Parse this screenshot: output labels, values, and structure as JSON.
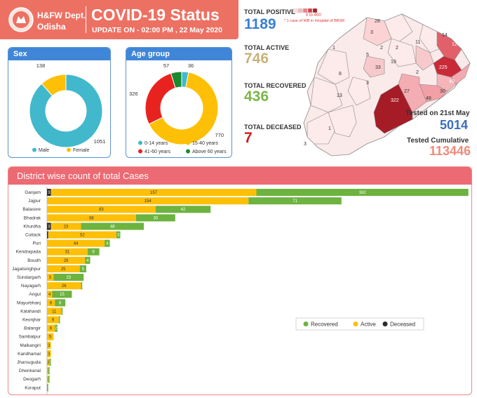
{
  "header": {
    "dept_line1": "H&FW Dept.",
    "dept_line2": "Odisha",
    "title": "COVID-19 Status",
    "update": "UPDATE ON - 02:00 PM , 22 May 2020"
  },
  "colors": {
    "header_bg": "#ec7163",
    "card_head_bg": "#3f86d8",
    "male": "#42b8cc",
    "female": "#fec006",
    "age_0_14": "#42b8cc",
    "age_15_40": "#fec006",
    "age_41_60": "#e8231f",
    "age_60_plus": "#1a8a2e",
    "positive": "#3b7fd1",
    "active": "#c9b27a",
    "recovered": "#7ab648",
    "deceased": "#d21a1a",
    "tested_day": "#3b6fbf",
    "tested_cum": "#f08a7a",
    "bar_recovered": "#6db33f",
    "bar_active": "#fec006",
    "bar_deceased": "#2b2b2b"
  },
  "stats": {
    "total_positive_label": "TOTAL POSITIVE",
    "total_positive": "1189",
    "total_active_label": "TOTAL ACTIVE",
    "total_active": "746",
    "total_recovered_label": "TOTAL RECOVERED",
    "total_recovered": "436",
    "total_deceased_label": "TOTAL DECEASED",
    "total_deceased": "7"
  },
  "tested": {
    "day_label": "Tested on 21st May",
    "day_value": "5014",
    "cum_label": "Tested Cumulative",
    "cum_value": "113446"
  },
  "map": {
    "legend_range": "0 to 400",
    "note": "* 1 case of WB in Hospital of BBSR",
    "labels": [
      "28",
      "14",
      "125",
      "225",
      "30",
      "40",
      "48",
      "27",
      "33",
      "19",
      "11",
      "2",
      "5",
      "2",
      "3",
      "8",
      "3",
      "2",
      "13",
      "322",
      "1",
      "3",
      "1"
    ]
  },
  "chart_data": [
    {
      "type": "pie",
      "title": "Sex",
      "categories": [
        "Male",
        "Female"
      ],
      "values": [
        1051,
        138
      ],
      "legend_placement": "bottom"
    },
    {
      "type": "pie",
      "title": "Age group",
      "categories": [
        "0-14 years",
        "15-40 years",
        "41-60 years",
        "Above 60 years"
      ],
      "values": [
        36,
        770,
        326,
        57
      ],
      "legend_placement": "bottom"
    },
    {
      "type": "bar",
      "orientation": "horizontal",
      "stacked": true,
      "title": "District wise count of total Cases",
      "categories": [
        "Ganjam",
        "Jajpur",
        "Balasore",
        "Bhadrak",
        "Khurdha",
        "Cuttack",
        "Puri",
        "Kendrapada",
        "Boudh",
        "Jagatsinghpur",
        "Sundargarh",
        "Nayagarh",
        "Angul",
        "Mayurbhanj",
        "Kalahandi",
        "Keonjhar",
        "Balangir",
        "Sambalpur",
        "Malkangiri",
        "Kandhamal",
        "Jharsuguda",
        "Dhenkanal",
        "Deogarh",
        "Koraput"
      ],
      "series": [
        {
          "name": "Deceased",
          "values": [
            3,
            0,
            0,
            0,
            3,
            1,
            0,
            0,
            0,
            0,
            0,
            0,
            0,
            0,
            0,
            0,
            0,
            0,
            0,
            0,
            0,
            0,
            0,
            0
          ]
        },
        {
          "name": "Active",
          "values": [
            157,
            154,
            83,
            68,
            23,
            52,
            44,
            31,
            29,
            25,
            5,
            26,
            4,
            6,
            11,
            9,
            6,
            5,
            3,
            3,
            2,
            1,
            1,
            0
          ]
        },
        {
          "name": "Recovered",
          "values": [
            162,
            71,
            42,
            30,
            48,
            3,
            4,
            9,
            4,
            5,
            23,
            1,
            15,
            8,
            1,
            1,
            2,
            0,
            0,
            0,
            1,
            1,
            1,
            1
          ]
        }
      ],
      "xlim": [
        0,
        320
      ],
      "xticks": [
        0,
        30,
        60,
        90,
        120,
        150,
        180,
        210,
        230,
        260,
        290,
        320
      ],
      "legend_placement": "right"
    }
  ]
}
